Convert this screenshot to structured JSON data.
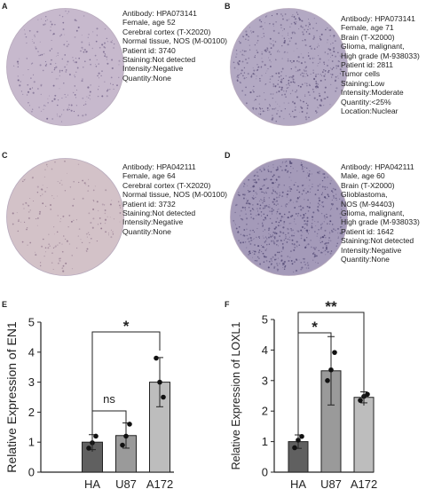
{
  "panels": {
    "A": {
      "letter": "A",
      "lines": [
        "Antibody:  HPA073141",
        "Female, age 52",
        "Cerebral cortex (T-X2020)",
        "Normal tissue, NOS (M-00100)",
        "Patient id: 3740",
        "Staining:Not detected",
        "Intensity:Negative",
        "Quantity:None"
      ],
      "tissue_color": "#c7b9cd"
    },
    "B": {
      "letter": "B",
      "lines": [
        "Antibody:  HPA073141",
        "Female, age 71",
        "Brain (T-X2000)",
        "Glioma, malignant,",
        "High grade (M-938033)",
        "Patient id: 2811",
        "Tumor cells",
        "Staining:Low",
        "Intensity:Moderate",
        "Quantity:<25%",
        "Location:Nuclear"
      ],
      "tissue_color": "#b3a9c3"
    },
    "C": {
      "letter": "C",
      "lines": [
        "Antibody:  HPA042111",
        "Female, age 64",
        "Cerebral cortex (T-X2020)",
        "Normal tissue, NOS (M-00100)",
        "Patient id: 3732",
        "Staining:Not detected",
        "Intensity:Negative",
        "Quantity:None"
      ],
      "tissue_color": "#d3c2c8"
    },
    "D": {
      "letter": "D",
      "lines": [
        "Antibody:  HPA042111",
        "Male, age 60",
        "Brain (T-X2000)",
        "Glioblastoma,",
        "NOS (M-94403)",
        "Glioma, malignant,",
        "High grade (M-938033)",
        "Patient id: 1642",
        "Staining:Not detected",
        "Intensity:Negative",
        "Quantity:None"
      ],
      "tissue_color": "#a49ab9"
    }
  },
  "chart_data": [
    {
      "panel": "E",
      "type": "bar",
      "ylabel": "Relative Expression of EN1",
      "categories": [
        "HA",
        "U87",
        "A172"
      ],
      "values": [
        1.0,
        1.22,
        3.0
      ],
      "errors": [
        0.25,
        0.42,
        0.82
      ],
      "points": [
        [
          0.8,
          1.2,
          0.98
        ],
        [
          0.9,
          1.6,
          1.2
        ],
        [
          3.8,
          2.5,
          3.0
        ]
      ],
      "bar_colors": [
        "#606060",
        "#9a9a9a",
        "#bdbdbd"
      ],
      "ylim": [
        0,
        5
      ],
      "yticks": [
        "0",
        "1",
        "2",
        "3",
        "4",
        "5"
      ],
      "significance": [
        {
          "label": "ns",
          "from": "HA",
          "to": "U87"
        },
        {
          "label": "*",
          "from": "HA",
          "to": "A172"
        }
      ]
    },
    {
      "panel": "F",
      "type": "bar",
      "ylabel": "Relative Expression of LOXL1",
      "categories": [
        "HA",
        "U87",
        "A172"
      ],
      "values": [
        1.0,
        3.32,
        2.45
      ],
      "errors": [
        0.22,
        1.12,
        0.18
      ],
      "points": [
        [
          0.8,
          1.17,
          1.05
        ],
        [
          3.0,
          3.92,
          3.35
        ],
        [
          2.35,
          2.55,
          2.48
        ]
      ],
      "bar_colors": [
        "#606060",
        "#9a9a9a",
        "#bdbdbd"
      ],
      "ylim": [
        0,
        5
      ],
      "yticks": [
        "0",
        "1",
        "2",
        "3",
        "4",
        "5"
      ],
      "significance": [
        {
          "label": "*",
          "from": "HA",
          "to": "U87"
        },
        {
          "label": "**",
          "from": "HA",
          "to": "A172"
        }
      ]
    }
  ]
}
